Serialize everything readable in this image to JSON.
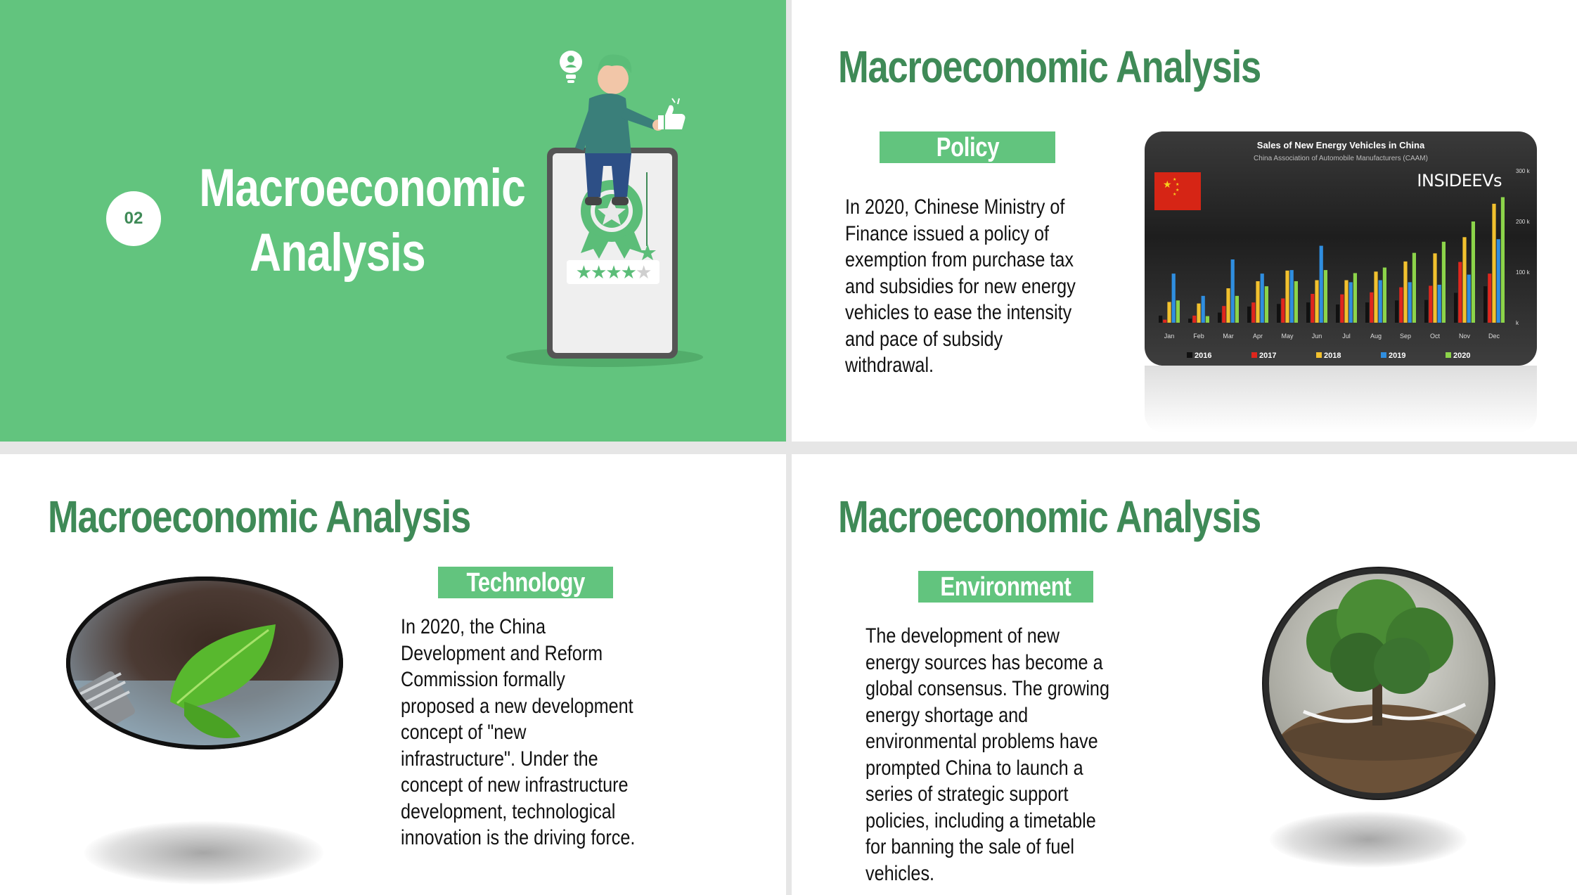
{
  "slide1": {
    "section_number": "02",
    "title_line1": "Macroeconomic",
    "title_line2": "Analysis",
    "illustration": "person-sitting-on-phone-with-rating-badge",
    "rating_stars_shown": 4,
    "rating_stars_total": 5,
    "icons": [
      "lightbulb-user-icon",
      "thumbs-up-icon",
      "award-badge-icon"
    ]
  },
  "slide2": {
    "title": "Macroeconomic Analysis",
    "tag": "Policy",
    "body": "In 2020, Chinese Ministry of Finance issued a policy of exemption from purchase tax and subsidies for new energy vehicles to ease the intensity and pace of subsidy withdrawal."
  },
  "slide3": {
    "title": "Macroeconomic Analysis",
    "tag": "Technology",
    "body": "In 2020, the China Development and Reform Commission formally proposed a new development concept of \"new infrastructure\". Under the concept of new infrastructure development, technological innovation is the driving force.",
    "image": "leaf-in-lightbulb-photo"
  },
  "slide4": {
    "title": "Macroeconomic Analysis",
    "tag": "Environment",
    "body": "The development of new energy sources has become a global consensus. The growing energy shortage and environmental problems have prompted China to launch a series of strategic support policies, including a timetable for banning the sale of fuel vehicles.",
    "image": "tree-on-soil-globe-photo"
  },
  "colors": {
    "accent_green": "#62c47e",
    "title_green": "#3f8a57",
    "chart_bg": "#2a2a2a",
    "s2016": "#111111",
    "s2017": "#e0261d",
    "s2018": "#f2c12e",
    "s2019": "#2f8ee0",
    "s2020": "#8cd44a"
  },
  "chart_data": {
    "type": "bar",
    "title": "Sales of New Energy Vehicles in China",
    "subtitle": "China Association of Automobile Manufacturers (CAAM)",
    "brand": "INSIDEEVs",
    "categories": [
      "Jan",
      "Feb",
      "Mar",
      "Apr",
      "May",
      "Jun",
      "Jul",
      "Aug",
      "Sep",
      "Oct",
      "Nov",
      "Dec"
    ],
    "series": [
      {
        "name": "2016",
        "values": [
          14,
          8,
          20,
          32,
          37,
          40,
          36,
          40,
          44,
          45,
          59,
          72
        ]
      },
      {
        "name": "2017",
        "values": [
          6,
          14,
          33,
          40,
          48,
          57,
          56,
          60,
          70,
          73,
          120,
          97
        ]
      },
      {
        "name": "2018",
        "values": [
          41,
          38,
          68,
          82,
          103,
          84,
          84,
          101,
          121,
          137,
          169,
          235
        ]
      },
      {
        "name": "2019",
        "values": [
          97,
          53,
          125,
          97,
          104,
          152,
          80,
          84,
          80,
          75,
          95,
          165
        ]
      },
      {
        "name": "2020",
        "values": [
          44,
          13,
          53,
          72,
          82,
          104,
          98,
          109,
          138,
          160,
          200,
          248
        ]
      }
    ],
    "ylim": [
      0,
      300
    ],
    "yticks": [
      "300 k",
      "200 k",
      "100 k",
      "k"
    ],
    "legend_position": "bottom",
    "grid": false
  }
}
